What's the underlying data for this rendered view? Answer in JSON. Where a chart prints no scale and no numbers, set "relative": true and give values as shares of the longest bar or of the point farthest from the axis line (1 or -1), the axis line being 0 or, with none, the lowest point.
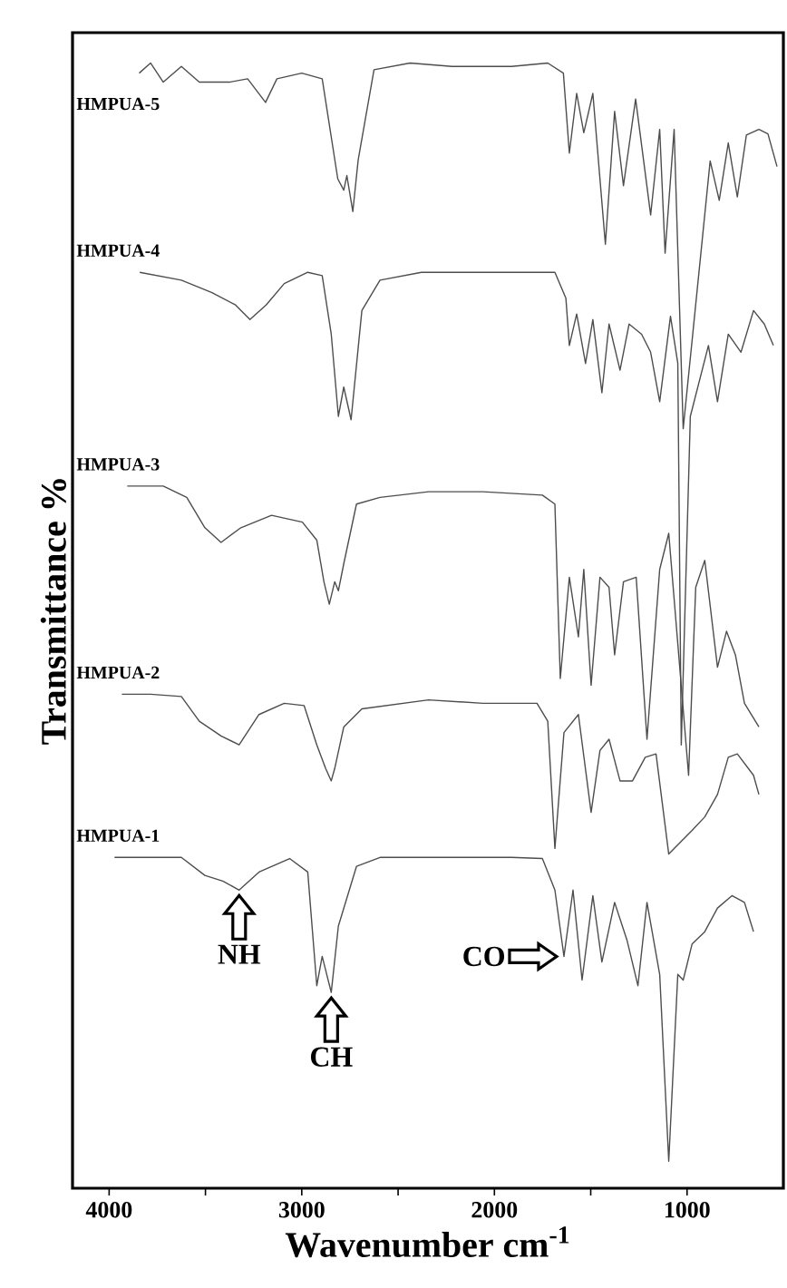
{
  "chart_data": {
    "type": "line",
    "relative": true,
    "xlabel": "Wavenumber cm$^{-1}$",
    "ylabel": "Transmittance %",
    "xlim": [
      4190,
      500
    ],
    "xticks": [
      4000,
      {
        "value": 3500,
        "label": null
      },
      3000,
      {
        "value": 2500,
        "label": null
      },
      2000,
      {
        "value": 1500,
        "label": null
      },
      1000
    ],
    "series": [
      {
        "name": "HMPUA-5",
        "color": "#4d4d4d",
        "x": [
          3844,
          3785,
          3719,
          3625,
          3532,
          3375,
          3281,
          3188,
          3129,
          3000,
          2894,
          2813,
          2782,
          2766,
          2735,
          2707,
          2625,
          2438,
          2220,
          1911,
          1723,
          1642,
          1611,
          1573,
          1536,
          1489,
          1424,
          1376,
          1330,
          1267,
          1189,
          1142,
          1114,
          1067,
          1020,
          880,
          833,
          786,
          739,
          692,
          627,
          580,
          533
        ],
        "values": [
          0.991,
          1.0,
          0.983,
          0.997,
          0.983,
          0.983,
          0.986,
          0.965,
          0.986,
          0.991,
          0.986,
          0.897,
          0.887,
          0.9,
          0.868,
          0.914,
          0.994,
          1.0,
          0.997,
          0.997,
          1.0,
          0.991,
          0.92,
          0.973,
          0.938,
          0.973,
          0.839,
          0.957,
          0.891,
          0.968,
          0.865,
          0.941,
          0.831,
          0.941,
          0.675,
          0.913,
          0.878,
          0.929,
          0.881,
          0.936,
          0.941,
          0.937,
          0.908
        ]
      },
      {
        "name": "HMPUA-4",
        "color": "#4d4d4d",
        "x": [
          3841,
          3625,
          3466,
          3344,
          3269,
          3185,
          3091,
          2969,
          2894,
          2847,
          2810,
          2782,
          2744,
          2688,
          2594,
          2379,
          1911,
          1686,
          1629,
          1611,
          1573,
          1527,
          1489,
          1442,
          1405,
          1348,
          1301,
          1236,
          1189,
          1142,
          1086,
          1048,
          1030,
          983,
          889,
          842,
          786,
          720,
          655,
          599,
          552
        ],
        "values": [
          0.814,
          0.807,
          0.796,
          0.785,
          0.772,
          0.785,
          0.804,
          0.814,
          0.811,
          0.759,
          0.686,
          0.712,
          0.683,
          0.78,
          0.807,
          0.814,
          0.814,
          0.814,
          0.791,
          0.749,
          0.777,
          0.733,
          0.772,
          0.707,
          0.768,
          0.727,
          0.768,
          0.759,
          0.743,
          0.699,
          0.775,
          0.733,
          0.394,
          0.686,
          0.749,
          0.699,
          0.759,
          0.743,
          0.78,
          0.768,
          0.749
        ]
      },
      {
        "name": "HMPUA-3",
        "color": "#4d4d4d",
        "x": [
          3906,
          3719,
          3597,
          3503,
          3419,
          3316,
          3157,
          2997,
          2922,
          2885,
          2857,
          2829,
          2810,
          2782,
          2716,
          2594,
          2342,
          2060,
          1751,
          1686,
          1658,
          1611,
          1564,
          1536,
          1498,
          1452,
          1405,
          1376,
          1330,
          1264,
          1208,
          1142,
          1095,
          992,
          955,
          908,
          842,
          795,
          749,
          702,
          627
        ],
        "values": [
          0.624,
          0.624,
          0.614,
          0.587,
          0.574,
          0.587,
          0.598,
          0.592,
          0.576,
          0.539,
          0.519,
          0.539,
          0.531,
          0.555,
          0.608,
          0.614,
          0.619,
          0.619,
          0.616,
          0.608,
          0.453,
          0.543,
          0.49,
          0.55,
          0.447,
          0.543,
          0.534,
          0.474,
          0.539,
          0.543,
          0.399,
          0.55,
          0.582,
          0.367,
          0.534,
          0.558,
          0.463,
          0.495,
          0.474,
          0.431,
          0.41
        ]
      },
      {
        "name": "HMPUA-2",
        "color": "#4d4d4d",
        "x": [
          3934,
          3785,
          3625,
          3532,
          3419,
          3325,
          3222,
          3091,
          2988,
          2922,
          2876,
          2847,
          2829,
          2782,
          2688,
          2342,
          2060,
          1779,
          1723,
          1686,
          1639,
          1564,
          1498,
          1452,
          1405,
          1348,
          1283,
          1217,
          1161,
          1095,
          974,
          908,
          842,
          786,
          739,
          655,
          627
        ],
        "values": [
          0.439,
          0.439,
          0.437,
          0.415,
          0.402,
          0.394,
          0.421,
          0.431,
          0.429,
          0.394,
          0.373,
          0.362,
          0.373,
          0.41,
          0.426,
          0.434,
          0.431,
          0.431,
          0.415,
          0.302,
          0.405,
          0.421,
          0.334,
          0.389,
          0.399,
          0.362,
          0.362,
          0.383,
          0.386,
          0.297,
          0.318,
          0.33,
          0.35,
          0.383,
          0.386,
          0.367,
          0.35
        ]
      },
      {
        "name": "HMPUA-1",
        "color": "#4d4d4d",
        "x": [
          3972,
          3625,
          3503,
          3410,
          3325,
          3222,
          3063,
          2969,
          2922,
          2894,
          2847,
          2810,
          2716,
          2594,
          2342,
          1911,
          1751,
          1686,
          1639,
          1592,
          1545,
          1489,
          1442,
          1376,
          1311,
          1255,
          1208,
          1142,
          1095,
          1048,
          1020,
          974,
          908,
          842,
          767,
          702,
          655
        ],
        "values": [
          0.294,
          0.294,
          0.278,
          0.273,
          0.265,
          0.281,
          0.293,
          0.281,
          0.18,
          0.206,
          0.174,
          0.233,
          0.286,
          0.294,
          0.294,
          0.294,
          0.293,
          0.265,
          0.206,
          0.265,
          0.185,
          0.26,
          0.201,
          0.254,
          0.22,
          0.18,
          0.254,
          0.19,
          0.024,
          0.19,
          0.185,
          0.217,
          0.228,
          0.249,
          0.26,
          0.254,
          0.228
        ]
      }
    ],
    "annotations": [
      {
        "text": "NH",
        "x": 3325,
        "y": 0.265
      },
      {
        "text": "CH",
        "x": 2847,
        "y": 0.174
      },
      {
        "text": "CO",
        "x": 1658,
        "y": 0.206
      }
    ]
  }
}
